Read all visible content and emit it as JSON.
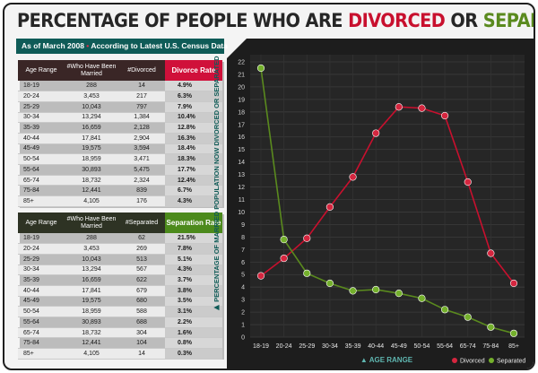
{
  "header": {
    "title_part1": "PERCENTAGE OF PEOPLE WHO ARE ",
    "title_divorced": "DIVORCED",
    "title_or": " OR ",
    "title_separated": "SEPARATED",
    "subtitle_part1": "As of March 2008",
    "subtitle_bullet": " • ",
    "subtitle_part2": "According to Latest U.S. Census Data"
  },
  "divorce_table": {
    "headers": [
      "Age Range",
      "#Who Have Been Married",
      "#Divorced",
      "Divorce Rate"
    ],
    "rows": [
      [
        "18-19",
        "288",
        "14",
        "4.9%"
      ],
      [
        "20-24",
        "3,453",
        "217",
        "6.3%"
      ],
      [
        "25-29",
        "10,043",
        "797",
        "7.9%"
      ],
      [
        "30-34",
        "13,294",
        "1,384",
        "10.4%"
      ],
      [
        "35-39",
        "16,659",
        "2,128",
        "12.8%"
      ],
      [
        "40-44",
        "17,841",
        "2,904",
        "16.3%"
      ],
      [
        "45-49",
        "19,575",
        "3,594",
        "18.4%"
      ],
      [
        "50-54",
        "18,959",
        "3,471",
        "18.3%"
      ],
      [
        "55-64",
        "30,893",
        "5,475",
        "17.7%"
      ],
      [
        "65-74",
        "18,732",
        "2,324",
        "12.4%"
      ],
      [
        "75-84",
        "12,441",
        "839",
        "6.7%"
      ],
      [
        "85+",
        "4,105",
        "176",
        "4.3%"
      ]
    ]
  },
  "separation_table": {
    "headers": [
      "Age Range",
      "#Who Have Been Married",
      "#Separated",
      "Separation Rate"
    ],
    "rows": [
      [
        "18-19",
        "288",
        "62",
        "21.5%"
      ],
      [
        "20-24",
        "3,453",
        "269",
        "7.8%"
      ],
      [
        "25-29",
        "10,043",
        "513",
        "5.1%"
      ],
      [
        "30-34",
        "13,294",
        "567",
        "4.3%"
      ],
      [
        "35-39",
        "16,659",
        "622",
        "3.7%"
      ],
      [
        "40-44",
        "17,841",
        "679",
        "3.8%"
      ],
      [
        "45-49",
        "19,575",
        "680",
        "3.5%"
      ],
      [
        "50-54",
        "18,959",
        "588",
        "3.1%"
      ],
      [
        "55-64",
        "30,893",
        "688",
        "2.2%"
      ],
      [
        "65-74",
        "18,732",
        "304",
        "1.6%"
      ],
      [
        "75-84",
        "12,441",
        "104",
        "0.8%"
      ],
      [
        "85+",
        "4,105",
        "14",
        "0.3%"
      ]
    ]
  },
  "colors": {
    "divorced": "#c8102e",
    "separated": "#5a8a1e",
    "chart_bg": "#1d1d1d",
    "teal": "#0f5b57"
  },
  "chart_data": {
    "type": "line",
    "categories": [
      "18-19",
      "20-24",
      "25-29",
      "30-34",
      "35-39",
      "40-44",
      "45-49",
      "50-54",
      "55-64",
      "65-74",
      "75-84",
      "85+"
    ],
    "series": [
      {
        "name": "Divorced",
        "values": [
          4.9,
          6.3,
          7.9,
          10.4,
          12.8,
          16.3,
          18.4,
          18.3,
          17.7,
          12.4,
          6.7,
          4.3
        ]
      },
      {
        "name": "Separated",
        "values": [
          21.5,
          7.8,
          5.1,
          4.3,
          3.7,
          3.8,
          3.5,
          3.1,
          2.2,
          1.6,
          0.8,
          0.3
        ]
      }
    ],
    "xlabel": "AGE RANGE",
    "ylabel": "PERCENTAGE OF MARRIED POPULATION NOW DIVORCED OR SEPARATED",
    "ylim": [
      0,
      22
    ],
    "yticks": [
      0,
      1,
      2,
      3,
      4,
      5,
      6,
      7,
      8,
      9,
      10,
      11,
      12,
      13,
      14,
      15,
      16,
      17,
      18,
      19,
      20,
      21,
      22
    ],
    "grid": true,
    "legend": "bottom-right"
  }
}
